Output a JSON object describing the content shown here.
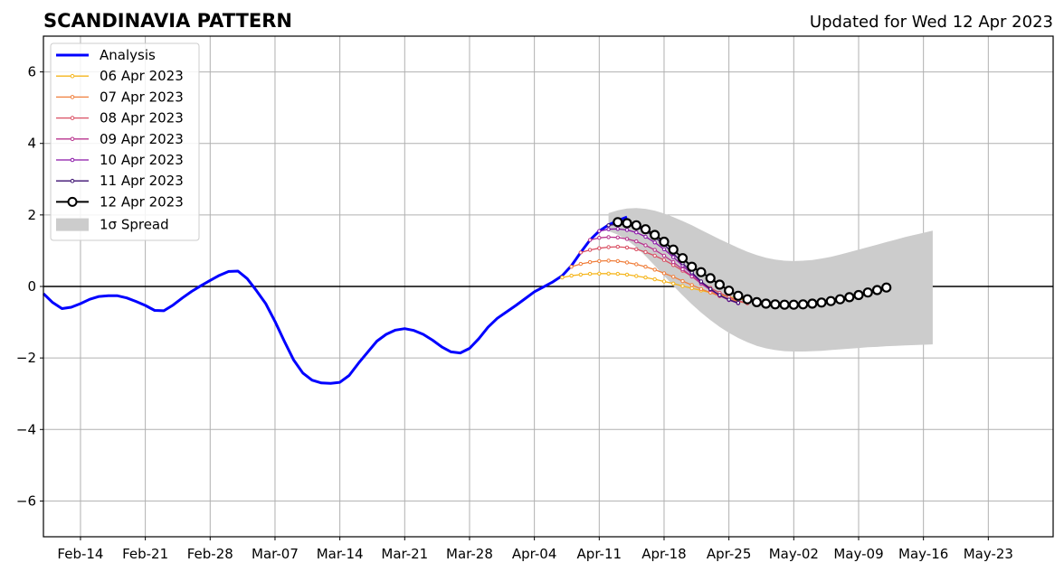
{
  "header": {
    "title": "SCANDINAVIA PATTERN",
    "subtitle": "Updated for Wed 12 Apr 2023"
  },
  "chart_data": {
    "type": "line",
    "title": "SCANDINAVIA PATTERN",
    "subtitle": "Updated for Wed 12 Apr 2023",
    "xlabel": "",
    "ylabel": "",
    "x_axis": {
      "type": "date",
      "range": [
        "2023-02-10",
        "2023-05-30"
      ],
      "ticks": [
        {
          "date": "2023-02-14",
          "label": "Feb-14"
        },
        {
          "date": "2023-02-21",
          "label": "Feb-21"
        },
        {
          "date": "2023-02-28",
          "label": "Feb-28"
        },
        {
          "date": "2023-03-07",
          "label": "Mar-07"
        },
        {
          "date": "2023-03-14",
          "label": "Mar-14"
        },
        {
          "date": "2023-03-21",
          "label": "Mar-21"
        },
        {
          "date": "2023-03-28",
          "label": "Mar-28"
        },
        {
          "date": "2023-04-04",
          "label": "Apr-04"
        },
        {
          "date": "2023-04-11",
          "label": "Apr-11"
        },
        {
          "date": "2023-04-18",
          "label": "Apr-18"
        },
        {
          "date": "2023-04-25",
          "label": "Apr-25"
        },
        {
          "date": "2023-05-02",
          "label": "May-02"
        },
        {
          "date": "2023-05-09",
          "label": "May-09"
        },
        {
          "date": "2023-05-16",
          "label": "May-16"
        },
        {
          "date": "2023-05-23",
          "label": "May-23"
        }
      ]
    },
    "y_axis": {
      "range": [
        -7,
        7
      ],
      "ticks": [
        {
          "value": -6,
          "label": "−6"
        },
        {
          "value": -4,
          "label": "−4"
        },
        {
          "value": -2,
          "label": "−2"
        },
        {
          "value": 0,
          "label": "0"
        },
        {
          "value": 2,
          "label": "2"
        },
        {
          "value": 4,
          "label": "4"
        },
        {
          "value": 6,
          "label": "6"
        }
      ]
    },
    "grid": true,
    "zero_line": true,
    "legend": {
      "placement": "top-left"
    },
    "analysis": {
      "name": "Analysis",
      "color": "#0000ff",
      "start": "2023-02-10",
      "values": [
        -0.2,
        -0.45,
        -0.62,
        -0.58,
        -0.48,
        -0.36,
        -0.28,
        -0.26,
        -0.26,
        -0.32,
        -0.42,
        -0.53,
        -0.67,
        -0.68,
        -0.52,
        -0.32,
        -0.14,
        0.02,
        0.17,
        0.31,
        0.42,
        0.43,
        0.22,
        -0.12,
        -0.48,
        -0.98,
        -1.53,
        -2.05,
        -2.42,
        -2.62,
        -2.7,
        -2.71,
        -2.68,
        -2.49,
        -2.15,
        -1.84,
        -1.53,
        -1.34,
        -1.22,
        -1.18,
        -1.23,
        -1.34,
        -1.5,
        -1.69,
        -1.83,
        -1.86,
        -1.73,
        -1.46,
        -1.14,
        -0.89,
        -0.71,
        -0.53,
        -0.34,
        -0.15,
        -0.01,
        0.13,
        0.3,
        0.58,
        0.95,
        1.3,
        1.55,
        1.72,
        1.84,
        1.94
      ]
    },
    "forecasts": [
      {
        "name": "06 Apr 2023",
        "color": "#f5b51c",
        "start": "2023-04-07",
        "values": [
          0.25,
          0.3,
          0.33,
          0.35,
          0.36,
          0.36,
          0.35,
          0.33,
          0.29,
          0.25,
          0.2,
          0.14,
          0.08,
          0.01,
          -0.05,
          -0.11,
          -0.17,
          -0.23,
          -0.29,
          -0.34,
          -0.39,
          -0.43
        ]
      },
      {
        "name": "07 Apr 2023",
        "color": "#f07f3c",
        "start": "2023-04-08",
        "values": [
          0.55,
          0.63,
          0.68,
          0.71,
          0.72,
          0.71,
          0.67,
          0.62,
          0.55,
          0.47,
          0.37,
          0.27,
          0.15,
          0.04,
          -0.07,
          -0.17,
          -0.27,
          -0.35,
          -0.42,
          -0.47
        ]
      },
      {
        "name": "08 Apr 2023",
        "color": "#d94f63",
        "start": "2023-04-09",
        "values": [
          0.95,
          1.02,
          1.07,
          1.1,
          1.11,
          1.09,
          1.04,
          0.96,
          0.86,
          0.74,
          0.6,
          0.44,
          0.28,
          0.12,
          -0.04,
          -0.18,
          -0.3,
          -0.4,
          -0.47
        ]
      },
      {
        "name": "09 Apr 2023",
        "color": "#b8338e",
        "start": "2023-04-10",
        "values": [
          1.3,
          1.36,
          1.38,
          1.37,
          1.33,
          1.26,
          1.15,
          1.02,
          0.86,
          0.68,
          0.48,
          0.28,
          0.08,
          -0.1,
          -0.26,
          -0.38,
          -0.46
        ]
      },
      {
        "name": "10 Apr 2023",
        "color": "#8a15a8",
        "start": "2023-04-11",
        "values": [
          1.55,
          1.6,
          1.61,
          1.58,
          1.51,
          1.39,
          1.23,
          1.04,
          0.82,
          0.58,
          0.35,
          0.12,
          -0.08,
          -0.25,
          -0.38,
          -0.47
        ]
      },
      {
        "name": "11 Apr 2023",
        "color": "#3b0f70",
        "start": "2023-04-12",
        "values": [
          1.71,
          1.74,
          1.72,
          1.66,
          1.55,
          1.38,
          1.17,
          0.92,
          0.65,
          0.39,
          0.14,
          -0.07,
          -0.24,
          -0.37,
          -0.46
        ]
      },
      {
        "name": "12 Apr 2023",
        "color": "#000000",
        "start": "2023-04-13",
        "values": [
          1.8,
          1.77,
          1.71,
          1.6,
          1.44,
          1.25,
          1.03,
          0.79,
          0.55,
          0.4,
          0.23,
          0.05,
          -0.12,
          -0.26,
          -0.36,
          -0.44,
          -0.48,
          -0.5,
          -0.51,
          -0.51,
          -0.5,
          -0.48,
          -0.45,
          -0.41,
          -0.36,
          -0.3,
          -0.24,
          -0.17,
          -0.1,
          -0.03
        ]
      }
    ],
    "spread": {
      "name": "1σ Spread",
      "color": "#cccccc",
      "start": "2023-04-12",
      "upper": [
        2.05,
        2.13,
        2.18,
        2.19,
        2.17,
        2.12,
        2.04,
        1.94,
        1.83,
        1.71,
        1.58,
        1.45,
        1.32,
        1.2,
        1.08,
        0.97,
        0.88,
        0.8,
        0.75,
        0.72,
        0.71,
        0.72,
        0.74,
        0.78,
        0.83,
        0.89,
        0.96,
        1.03,
        1.1,
        1.17,
        1.24,
        1.31,
        1.38,
        1.44,
        1.5,
        1.56
      ],
      "lower": [
        1.55,
        1.45,
        1.3,
        1.1,
        0.85,
        0.58,
        0.3,
        0.02,
        -0.25,
        -0.5,
        -0.73,
        -0.94,
        -1.13,
        -1.3,
        -1.44,
        -1.56,
        -1.66,
        -1.73,
        -1.78,
        -1.81,
        -1.82,
        -1.82,
        -1.81,
        -1.8,
        -1.78,
        -1.76,
        -1.74,
        -1.72,
        -1.7,
        -1.69,
        -1.67,
        -1.66,
        -1.65,
        -1.64,
        -1.63,
        -1.62
      ]
    },
    "legend_entries": [
      "Analysis",
      "06 Apr 2023",
      "07 Apr 2023",
      "08 Apr 2023",
      "09 Apr 2023",
      "10 Apr 2023",
      "11 Apr 2023",
      "12 Apr 2023",
      "1σ Spread"
    ]
  }
}
